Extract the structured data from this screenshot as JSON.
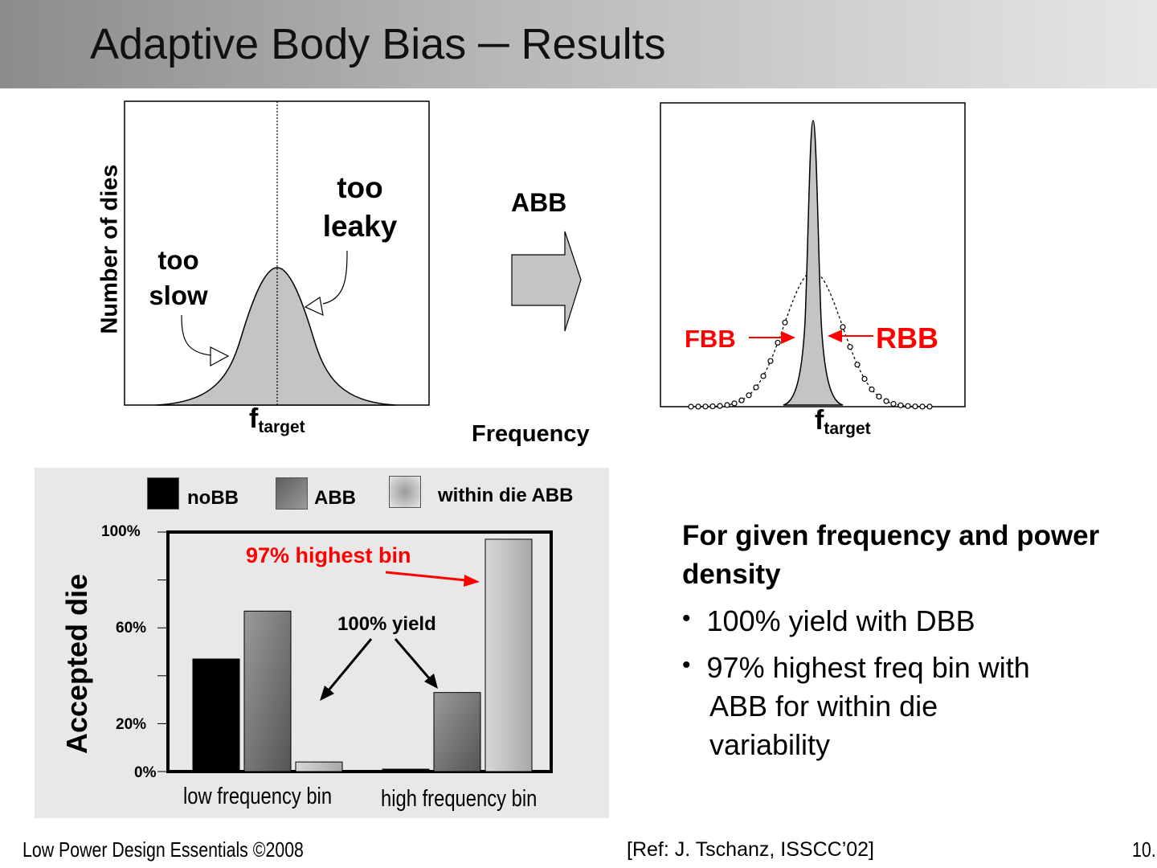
{
  "slide": {
    "title": "Adaptive Body Bias ─ Results"
  },
  "top_left_plot": {
    "ylabel": "Number of dies",
    "label_too_leaky_1": "too",
    "label_too_leaky_2": "leaky",
    "label_too_slow_1": "too",
    "label_too_slow_2": "slow",
    "x_tick_main": "f",
    "x_tick_sub": "target"
  },
  "middle": {
    "arrow_label": "ABB",
    "xlabel": "Frequency"
  },
  "top_right_plot": {
    "fbb_label": "FBB",
    "rbb_label": "RBB",
    "x_tick_main": "f",
    "x_tick_sub": "target"
  },
  "chart_data": {
    "type": "bar",
    "categories": [
      "low frequency bin",
      "high frequency bin"
    ],
    "series": [
      {
        "name": "noBB",
        "values": [
          47,
          1
        ]
      },
      {
        "name": "ABB",
        "values": [
          67,
          33
        ]
      },
      {
        "name": "within die ABB",
        "values": [
          4,
          97
        ]
      }
    ],
    "ylabel": "Accepted die",
    "yticks": [
      "100%",
      "60%",
      "20%",
      "0%"
    ],
    "ylim": [
      0,
      100
    ],
    "annotations": [
      "97% highest bin",
      "100% yield"
    ],
    "legend": "top",
    "colors": {
      "noBB": "#000000",
      "ABB": "#7a7a7a",
      "within die ABB": "#c2c2c2"
    }
  },
  "right_panel": {
    "heading": "For given frequency  and power density",
    "bullet_1": "100% yield with DBB",
    "bullet_2_line1": "97% highest freq bin with",
    "bullet_2_line2": "ABB for within die",
    "bullet_2_line3": "variability"
  },
  "footer": {
    "left": "Low Power Design Essentials ©2008",
    "center": "[Ref: J. Tschanz, ISSCC’02]",
    "right": "10."
  }
}
